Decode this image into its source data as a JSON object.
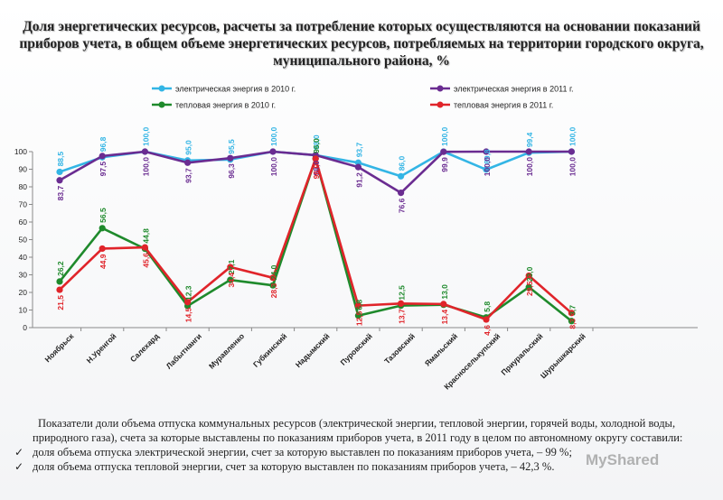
{
  "title": "Доля энергетических ресурсов, расчеты за потребление которых осуществляются на основании показаний приборов учета, в общем объеме энергетических ресурсов, потребляемых на территории городского округа, муниципального района, %",
  "chart_data": {
    "type": "line",
    "categories": [
      "Ноябрьск",
      "Н.Уренгой",
      "Салехард",
      "Лабытнанги",
      "Муравленко",
      "Губкинский",
      "Надымский",
      "Пуровский",
      "Тазовский",
      "Ямальский",
      "Красноселькупский",
      "Приуральский",
      "Шурышкарский"
    ],
    "ylim": [
      0,
      100
    ],
    "yticks": [
      0,
      10,
      20,
      30,
      40,
      50,
      60,
      70,
      80,
      90,
      100
    ],
    "legend_position": "top",
    "grid": false,
    "series": [
      {
        "name": "электрическая энергия в 2010 г.",
        "color": "#33b5e5",
        "values": [
          88.5,
          96.8,
          100.0,
          95.0,
          95.5,
          100.0,
          98.0,
          93.7,
          86.0,
          100.0,
          89.8,
          99.4,
          100.0
        ],
        "labels": [
          "88,5",
          "96,8",
          "100,0",
          "95,0",
          "95,5",
          "100,0",
          "98,0",
          "93,7",
          "86,0",
          "100,0",
          "89,8",
          "99,4",
          "100,0"
        ]
      },
      {
        "name": "электрическая энергия в 2011 г.",
        "color": "#6a2c91",
        "values": [
          83.7,
          97.5,
          100.0,
          93.7,
          96.3,
          100.0,
          98.0,
          91.2,
          76.6,
          99.9,
          100.0,
          100.0,
          100.0
        ],
        "labels": [
          "83,7",
          "97,5",
          "100,0",
          "93,7",
          "96,3",
          "100,0",
          "98,0",
          "91,2",
          "76,6",
          "99,9",
          "100,0",
          "100,0",
          "100,0"
        ]
      },
      {
        "name": "тепловая энергия в 2010 г.",
        "color": "#1f8a2c",
        "values": [
          26.2,
          56.5,
          44.8,
          12.3,
          27.1,
          24.0,
          96.0,
          6.8,
          12.5,
          13.0,
          5.8,
          23.0,
          3.7
        ],
        "labels": [
          "26,2",
          "56,5",
          "44,8",
          "12,3",
          "27,1",
          "24,0",
          "96,0",
          "6,8",
          "12,5",
          "13,0",
          "5,8",
          "23,0",
          "3,7"
        ]
      },
      {
        "name": "тепловая энергия в 2011 г.",
        "color": "#e0242a",
        "values": [
          21.5,
          44.9,
          45.6,
          14.5,
          34.4,
          28.3,
          96.0,
          12.5,
          13.7,
          13.4,
          4.6,
          29.5,
          8.3
        ],
        "labels": [
          "21,5",
          "44,9",
          "45,6",
          "14,5",
          "34,4",
          "28,3",
          "96,0",
          "12,5",
          "13,7",
          "13,4",
          "4,6",
          "29,5",
          "8,3"
        ]
      }
    ]
  },
  "summary": {
    "intro": "Показатели доли объема отпуска коммунальных ресурсов (электрической энергии, тепловой энергии, горячей воды, холодной воды, природного газа), счета за которые выставлены по показаниям приборов учета, в 2011 году в целом по автономному округу составили:",
    "bullets": [
      "доля объема отпуска электрической энергии, счет за которую выставлен по показаниям приборов учета, – 99 %;",
      "доля объема отпуска тепловой энергии, счет за которую выставлен по показаниям приборов учета, – 42,3 %."
    ],
    "check_icon": "✓"
  },
  "watermark": "MyShared"
}
